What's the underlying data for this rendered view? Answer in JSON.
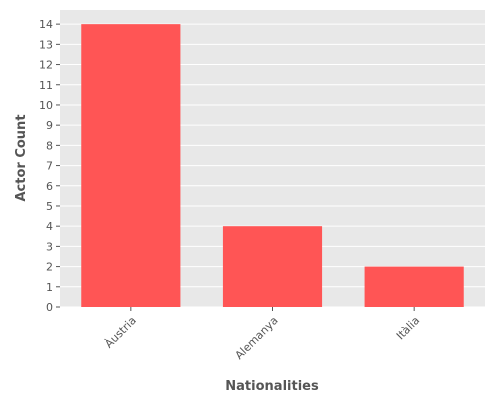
{
  "chart_data": {
    "type": "bar",
    "categories": [
      "Àustria",
      "Alemanya",
      "Itàlia"
    ],
    "values": [
      14,
      4,
      2
    ],
    "title": "",
    "xlabel": "Nationalities",
    "ylabel": "Actor Count",
    "ylim": [
      0,
      14.7
    ],
    "yticks": [
      0,
      1,
      2,
      3,
      4,
      5,
      6,
      7,
      8,
      9,
      10,
      11,
      12,
      13,
      14
    ],
    "grid": true,
    "colors": {
      "bar": "#ff5555",
      "background": "#e8e8e8",
      "grid": "#ffffff",
      "text": "#555555"
    }
  }
}
